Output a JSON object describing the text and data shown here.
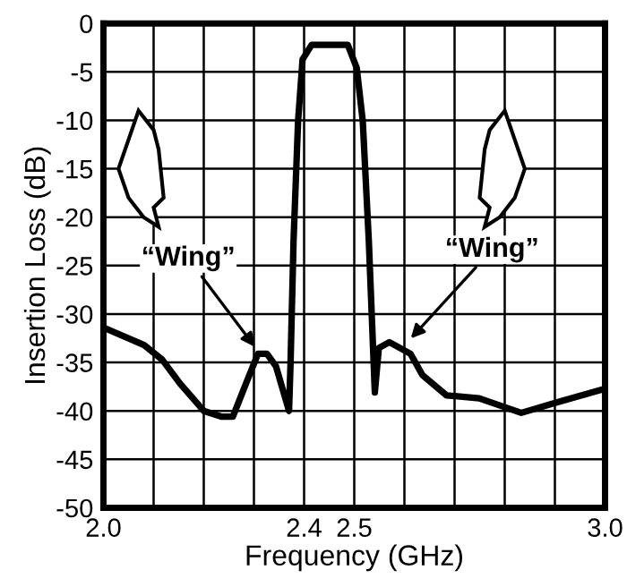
{
  "chart_data": {
    "type": "line",
    "xlabel": "Frequency (GHz)",
    "ylabel": "Insertion Loss (dB)",
    "x": [
      2.0,
      2.081,
      2.117,
      2.153,
      2.2,
      2.236,
      2.258,
      2.284,
      2.308,
      2.326,
      2.344,
      2.37,
      2.373,
      2.379,
      2.388,
      2.397,
      2.415,
      2.487,
      2.505,
      2.517,
      2.529,
      2.541,
      2.549,
      2.57,
      2.612,
      2.636,
      2.684,
      2.749,
      2.833,
      2.905,
      3.0
    ],
    "series": [
      {
        "color": "#000000",
        "values": [
          -31.4,
          -33.2,
          -34.7,
          -37.2,
          -40.0,
          -40.6,
          -40.6,
          -37.2,
          -34.1,
          -34.1,
          -35.4,
          -40.0,
          -35.0,
          -22.4,
          -10.1,
          -3.7,
          -2.2,
          -2.2,
          -4.6,
          -10.1,
          -22.4,
          -38.1,
          -33.5,
          -32.9,
          -34.1,
          -36.3,
          -38.4,
          -38.7,
          -40.2,
          -39.1,
          -37.7
        ]
      }
    ],
    "xlim": [
      2.0,
      3.0
    ],
    "xticks": [
      {
        "value": 2.0,
        "label": "2.0"
      },
      {
        "value": 2.1,
        "label": null
      },
      {
        "value": 2.2,
        "label": null
      },
      {
        "value": 2.3,
        "label": null
      },
      2.4,
      2.5,
      {
        "value": 2.6,
        "label": null
      },
      {
        "value": 2.7,
        "label": null
      },
      {
        "value": 2.8,
        "label": null
      },
      {
        "value": 2.9,
        "label": null
      },
      {
        "value": 3.0,
        "label": "3.0"
      }
    ],
    "ylim": [
      -50,
      0
    ],
    "yticks": [
      0,
      -5,
      -10,
      -15,
      -20,
      -25,
      -30,
      -35,
      -40,
      -45,
      -50
    ],
    "grid": true,
    "marker": "none",
    "line_style": "solid",
    "legend": false,
    "annotations": [
      {
        "text": "“Wing”",
        "x": 2.308,
        "y": -33.8
      },
      {
        "text": "“Wing”",
        "x": 2.606,
        "y": -32.9
      }
    ]
  }
}
